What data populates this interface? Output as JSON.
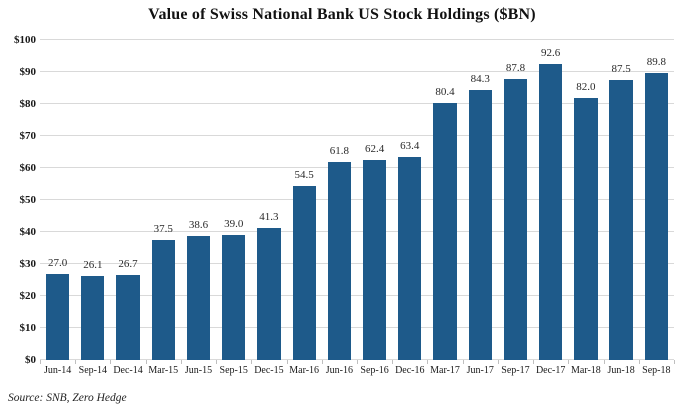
{
  "source": "Source: SNB, Zero Hedge",
  "chart_data": {
    "type": "bar",
    "title": "Value of Swiss National Bank US Stock Holdings ($BN)",
    "categories": [
      "Jun-14",
      "Sep-14",
      "Dec-14",
      "Mar-15",
      "Jun-15",
      "Sep-15",
      "Dec-15",
      "Mar-16",
      "Jun-16",
      "Sep-16",
      "Dec-16",
      "Mar-17",
      "Jun-17",
      "Sep-17",
      "Dec-17",
      "Mar-18",
      "Jun-18",
      "Sep-18"
    ],
    "values": [
      27.0,
      26.1,
      26.7,
      37.5,
      38.6,
      39.0,
      41.3,
      54.5,
      61.8,
      62.4,
      63.4,
      80.4,
      84.3,
      87.8,
      92.6,
      82.0,
      87.5,
      89.8
    ],
    "value_labels": [
      "27.0",
      "26.1",
      "26.7",
      "37.5",
      "38.6",
      "39.0",
      "41.3",
      "54.5",
      "61.8",
      "62.4",
      "63.4",
      "80.4",
      "84.3",
      "87.8",
      "92.6",
      "82.0",
      "87.5",
      "89.8"
    ],
    "xlabel": "",
    "ylabel": "",
    "ylim": [
      0,
      100
    ],
    "ytick_step": 10,
    "ytick_labels": [
      "$0",
      "$10",
      "$20",
      "$30",
      "$40",
      "$50",
      "$60",
      "$70",
      "$80",
      "$90",
      "$100"
    ],
    "grid": true,
    "legend": "none",
    "bar_color": "#1E5A8A",
    "gridline_color": "#d9d9d9"
  }
}
